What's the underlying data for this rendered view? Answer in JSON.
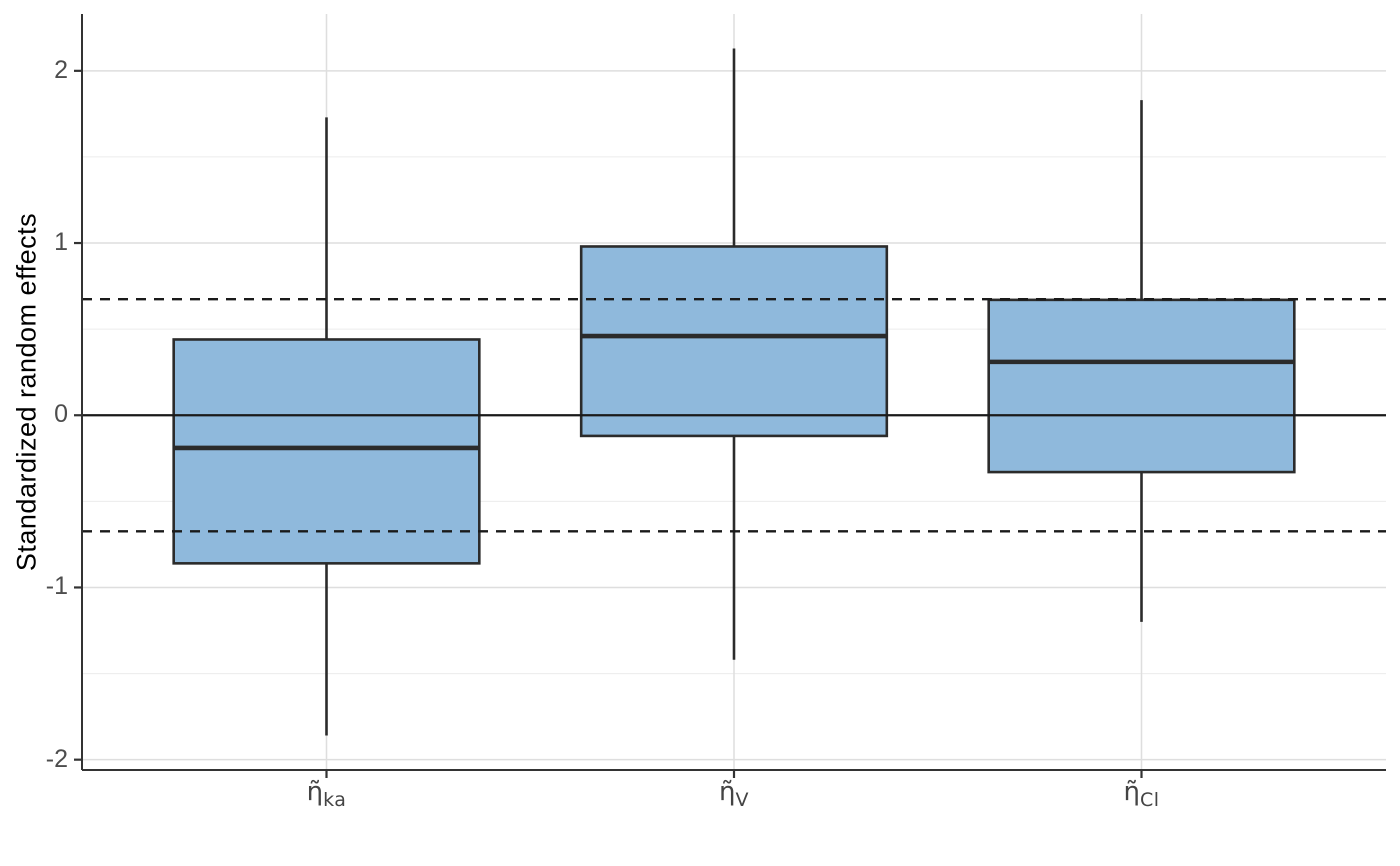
{
  "chart_data": {
    "type": "boxplot",
    "title": "",
    "xlabel": "",
    "ylabel": "Standardized random effects",
    "ylim": [
      -2.06,
      2.33
    ],
    "yticks": [
      -2,
      -1,
      0,
      1,
      2
    ],
    "y_minor": [
      -1.5,
      -0.5,
      0.5,
      1.5
    ],
    "grid": true,
    "legend": false,
    "categories": [
      {
        "id": "eta-ka",
        "base": "η̃",
        "sub": "ka"
      },
      {
        "id": "eta-V",
        "base": "η̃",
        "sub": "V"
      },
      {
        "id": "eta-Cl",
        "base": "η̃",
        "sub": "Cl"
      }
    ],
    "boxes": [
      {
        "id": "eta-ka",
        "whisker_low": -1.86,
        "q1": -0.86,
        "median": -0.19,
        "q3": 0.44,
        "whisker_high": 1.73
      },
      {
        "id": "eta-V",
        "whisker_low": -1.42,
        "q1": -0.12,
        "median": 0.46,
        "q3": 0.98,
        "whisker_high": 2.13
      },
      {
        "id": "eta-Cl",
        "whisker_low": -1.2,
        "q1": -0.33,
        "median": 0.31,
        "q3": 0.67,
        "whisker_high": 1.83
      }
    ],
    "reference_lines": [
      {
        "y": 0,
        "style": "solid"
      },
      {
        "y": 0.674,
        "style": "dashed"
      },
      {
        "y": -0.674,
        "style": "dashed"
      }
    ],
    "colors": {
      "panel_background": "#ffffff",
      "box_fill": "#8FB9DC",
      "box_stroke": "#2b2b2b",
      "median_stroke": "#2b2b2b",
      "reference_line": "#1a1a1a",
      "grid_major": "#dedede",
      "grid_minor": "#ececec",
      "axis_line": "#333333",
      "tick_text": "#4d4d4d",
      "axis_title_text": "#000000"
    }
  }
}
